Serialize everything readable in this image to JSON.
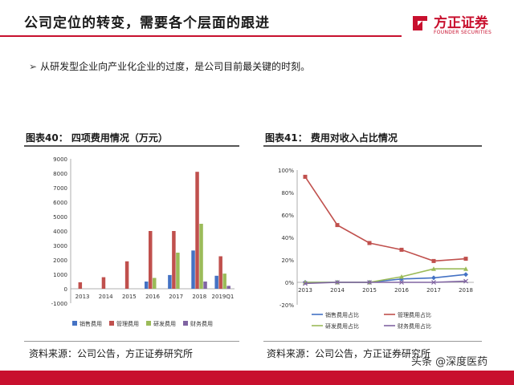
{
  "header": {
    "title": "公司定位的转变，需要各个层面的跟进",
    "logo_cn": "方正证券",
    "logo_en": "FOUNDER SECURITIES",
    "accent": "#c8102e"
  },
  "bullet": {
    "marker": "➢",
    "text": "从研发型企业向产业化企业的过度，是公司目前最关键的时刻。"
  },
  "left_chart": {
    "title": "图表40：  四项费用情况（万元）",
    "source": "资料来源：公司公告，方正证券研究所"
  },
  "right_chart": {
    "title": "图表41：  费用对收入占比情况",
    "source": "资料来源：公司公告，方正证券研究所"
  },
  "watermark": "头条 @深度医药",
  "chart_data": [
    {
      "type": "bar",
      "categories": [
        "2013",
        "2014",
        "2015",
        "2016",
        "2017",
        "2018",
        "2019Q1"
      ],
      "ylim": [
        -1000,
        9000
      ],
      "yticks": [
        -1000,
        0,
        1000,
        2000,
        3000,
        4000,
        5000,
        6000,
        7000,
        8000,
        9000
      ],
      "series": [
        {
          "name": "销售费用",
          "color": "#4472c4",
          "values": [
            0,
            0,
            0,
            500,
            950,
            2650,
            900
          ]
        },
        {
          "name": "管理费用",
          "color": "#c0504d",
          "values": [
            450,
            800,
            1900,
            4000,
            4000,
            8100,
            2250
          ]
        },
        {
          "name": "研发费用",
          "color": "#9bbb59",
          "values": [
            0,
            0,
            0,
            750,
            2500,
            4500,
            1050
          ]
        },
        {
          "name": "财务费用",
          "color": "#8064a2",
          "values": [
            0,
            0,
            0,
            0,
            0,
            500,
            200
          ]
        }
      ]
    },
    {
      "type": "line",
      "categories": [
        "2013",
        "2014",
        "2015",
        "2016",
        "2017",
        "2018"
      ],
      "ylim": [
        -20,
        100
      ],
      "yticks": [
        "-20%",
        "0%",
        "20%",
        "40%",
        "60%",
        "80%",
        "100%"
      ],
      "series": [
        {
          "name": "销售费用占比",
          "color": "#4472c4",
          "values": [
            0,
            0,
            0,
            3,
            4,
            7
          ]
        },
        {
          "name": "管理费用占比",
          "color": "#c0504d",
          "values": [
            94,
            51,
            35,
            29,
            19,
            21
          ]
        },
        {
          "name": "研发费用占比",
          "color": "#9bbb59",
          "values": [
            0,
            0,
            0,
            5,
            12,
            12
          ]
        },
        {
          "name": "财务费用占比",
          "color": "#8064a2",
          "values": [
            -1,
            0,
            0,
            0,
            0,
            1
          ]
        }
      ]
    }
  ]
}
